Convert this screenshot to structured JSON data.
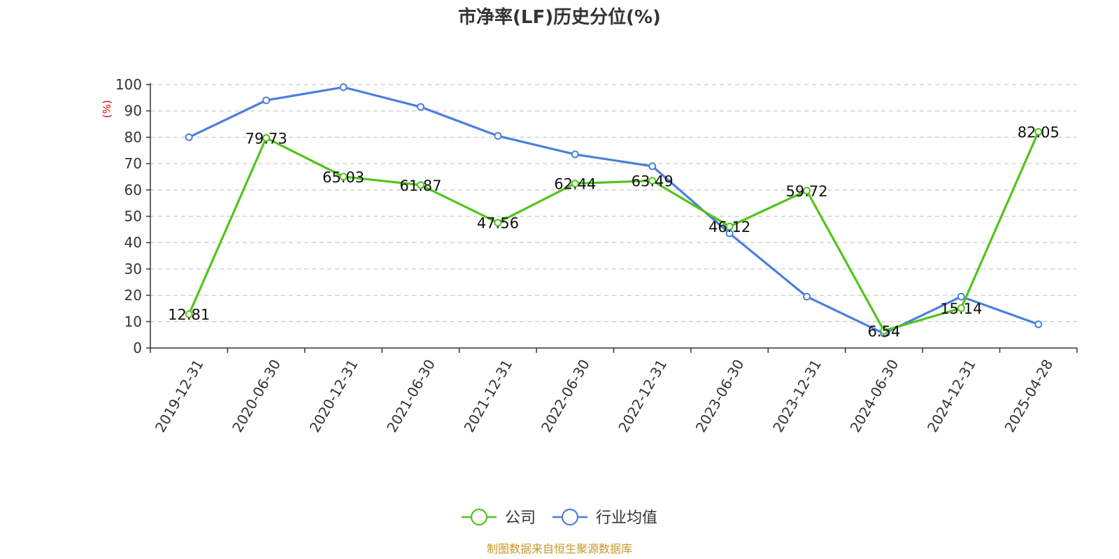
{
  "chart_data": {
    "type": "line",
    "title": "市净率(LF)历史分位(%)",
    "ylabel": "(%)",
    "ylim": [
      0,
      100
    ],
    "yticks": [
      0,
      10,
      20,
      30,
      40,
      50,
      60,
      70,
      80,
      90,
      100
    ],
    "grid": true,
    "legend_position": "bottom",
    "categories": [
      "2019-12-31",
      "2020-06-30",
      "2020-12-31",
      "2021-06-30",
      "2021-12-31",
      "2022-06-30",
      "2022-12-31",
      "2023-06-30",
      "2023-12-31",
      "2024-06-30",
      "2024-12-31",
      "2025-04-28"
    ],
    "series": [
      {
        "name": "公司",
        "color": "#52c41a",
        "values": [
          12.81,
          79.73,
          65.03,
          61.87,
          47.56,
          62.44,
          63.49,
          46.12,
          59.72,
          6.54,
          15.14,
          82.05
        ],
        "show_labels": true
      },
      {
        "name": "行业均值",
        "color": "#4a7fdc",
        "values": [
          80,
          94,
          99,
          91.5,
          80.5,
          73.5,
          69,
          43.5,
          19.5,
          5.5,
          19.5,
          9
        ],
        "show_labels": false
      }
    ],
    "source": "制图数据来自恒生聚源数据库",
    "source_color": "#c8962a",
    "ylabel_color": "#e00000"
  }
}
